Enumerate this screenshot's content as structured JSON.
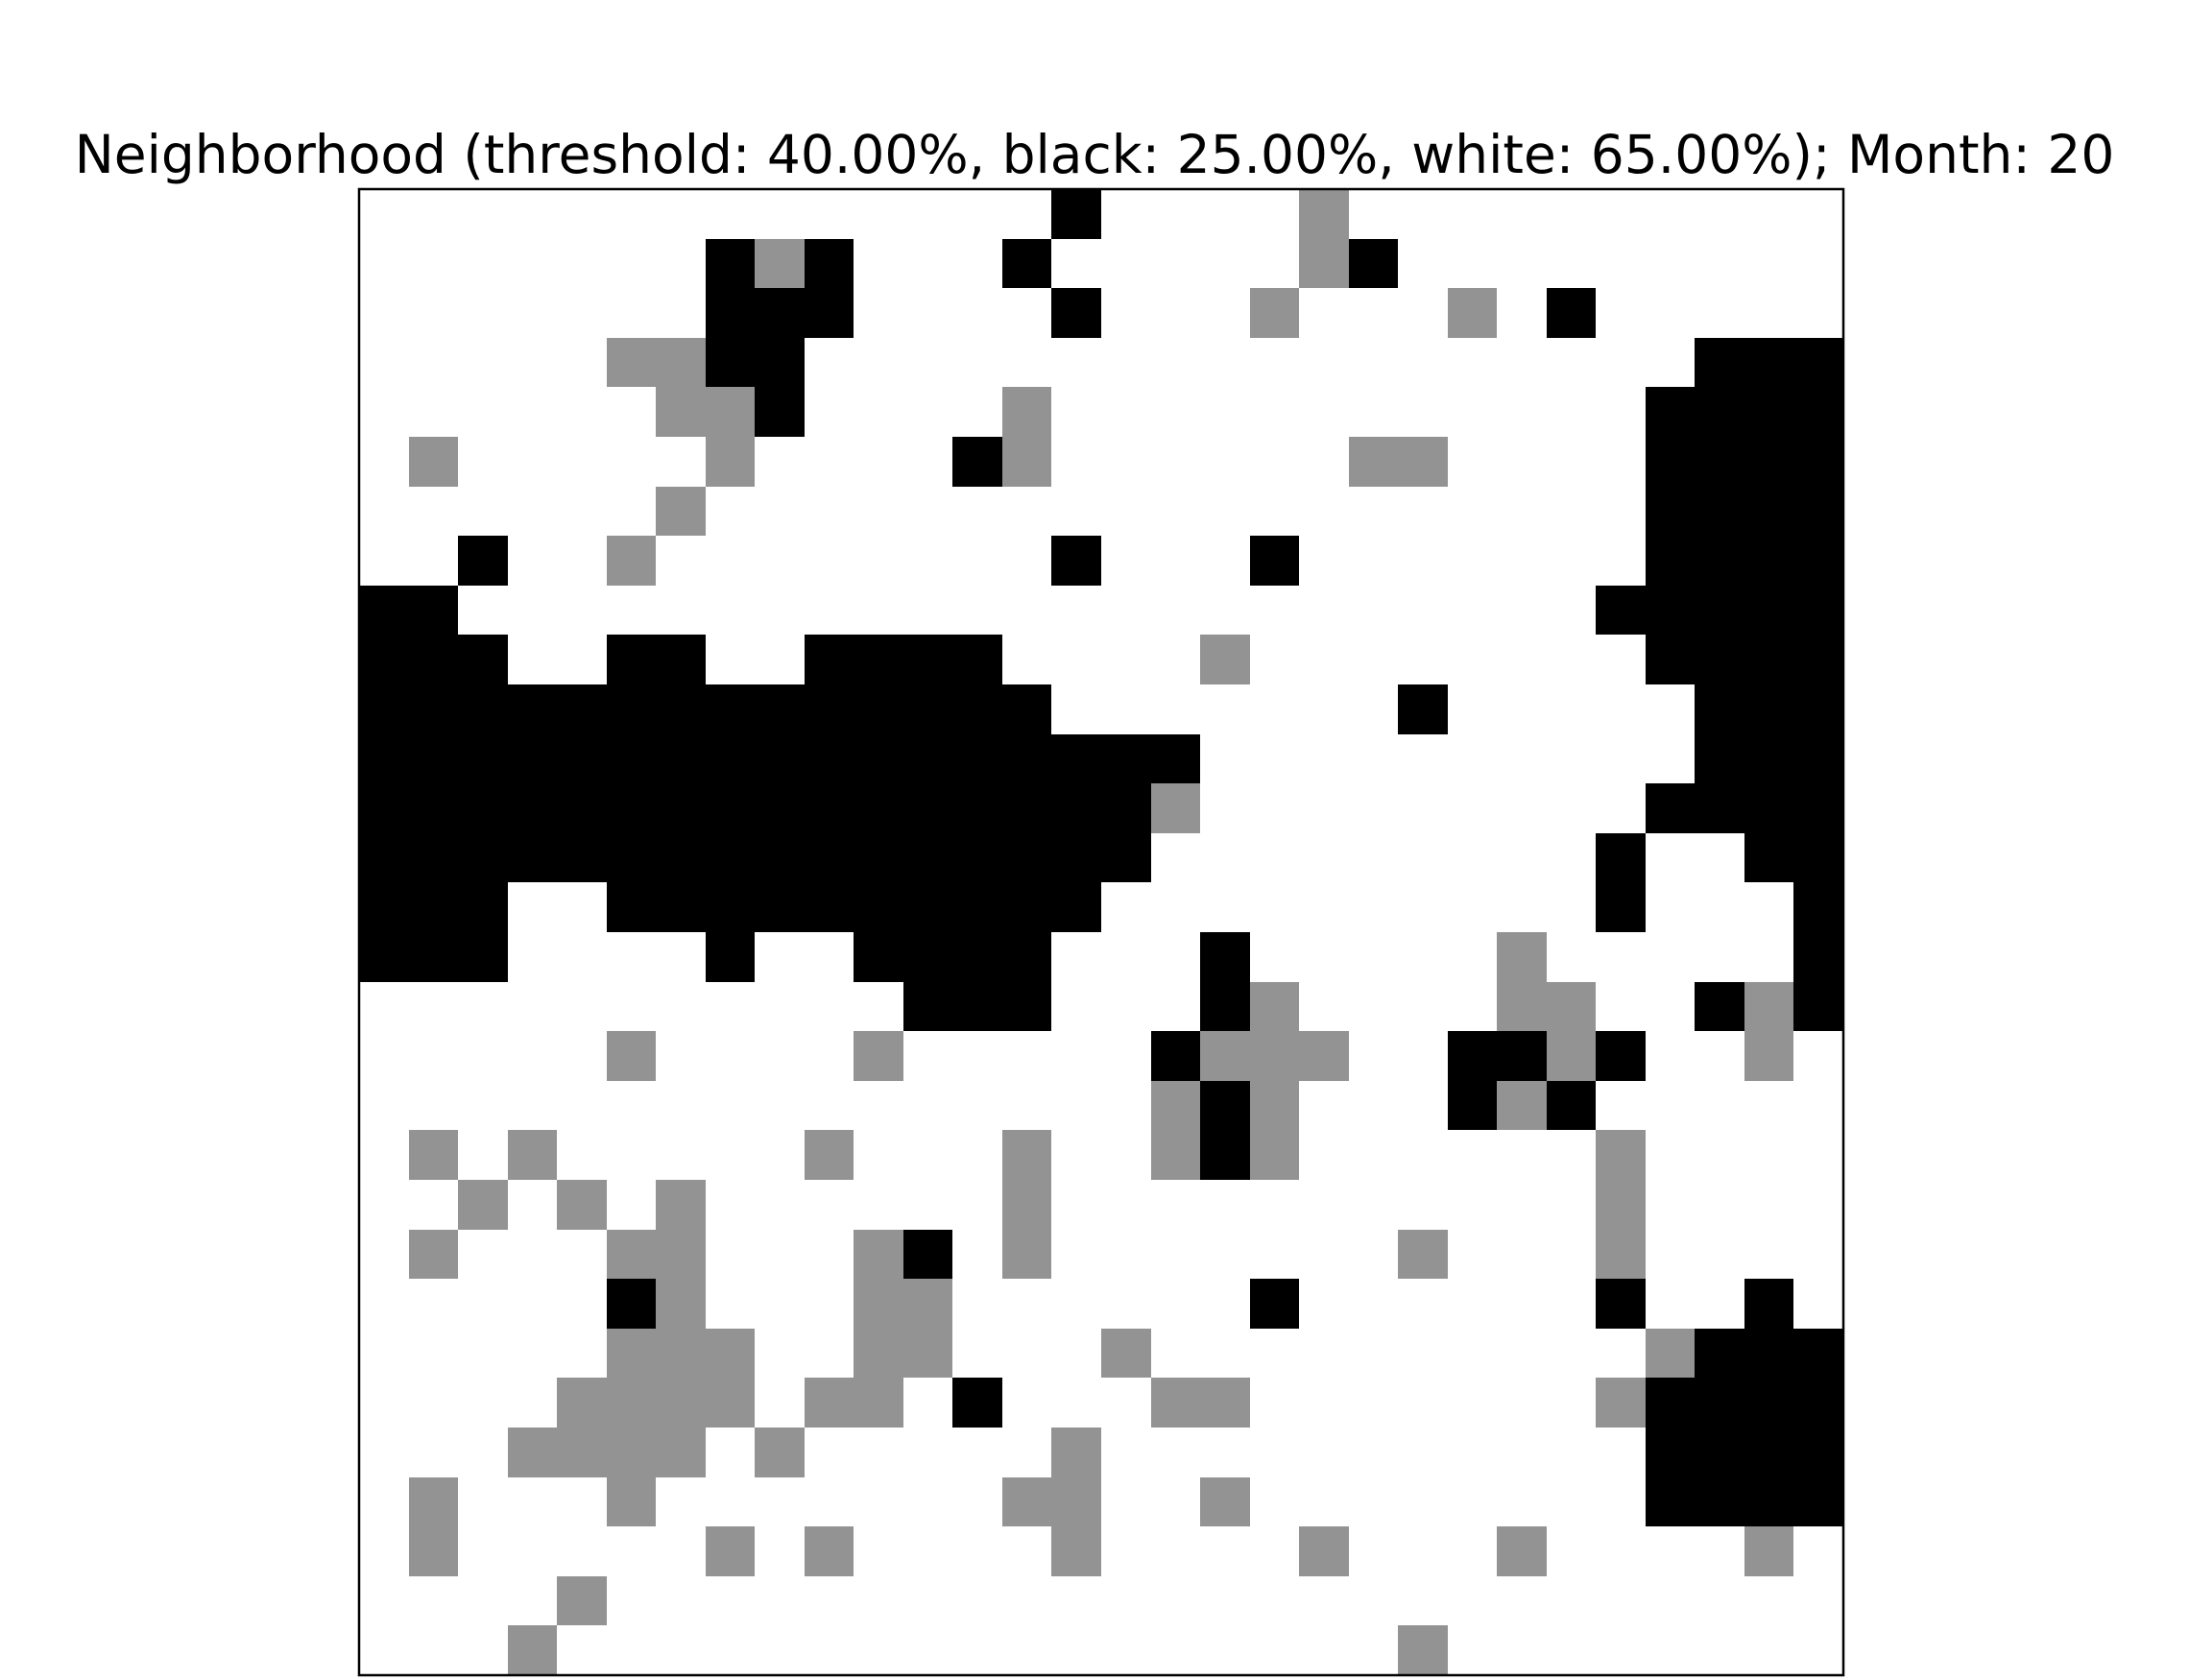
{
  "chart_data": {
    "type": "heatmap",
    "title": "Neighborhood (threshold: 40.00%, black: 25.00%, white: 65.00%); Month: 20",
    "xlabel": "",
    "ylabel": "",
    "grid": false,
    "legend": "none",
    "axes_ticks": false,
    "rows": 30,
    "cols": 30,
    "legend_map": {
      "W": "white",
      "B": "black",
      "G": "empty"
    },
    "colors": {
      "W": "#ffffff",
      "B": "#000000",
      "G": "#939393"
    },
    "cells": [
      "WWWWWWWWWWWWWWBWWWWGWWWWWWWWWW",
      "WWWWWWWBGBWWWBWWWWWGBWWWWWWWWW",
      "WWWWWWWBBBWWWWBWWWGWWWGWBWWWWW",
      "WWWWWGGBBWWWWWWWWWWWWWWWWWWBBB",
      "WWWWWWGGBWWWWGWWWWWWWWWWWWBBBB",
      "WGWWWWWGWWWWBGWWWWWWGGWWWWBBBB",
      "WWWWWWGWWWWWWWWWWWWWWWWWWWBBBB",
      "WWBWWGWWWWWWWWBWWWBWWWWWWWBBBB",
      "BBWWWWWWWWWWWWWWWWWWWWWWWBBBBB",
      "BBBWWBBWWBBBBWWWWGWWWWWWWWBBBB",
      "BBBBBBBBBBBBBBWWWWWWWBWWWWWBBB",
      "BBBBBBBBBBBBBBBBBWWWWWWWWWWBBB",
      "BBBBBBBBBBBBBBBBGWWWWWWWWWBBBB",
      "BBBBBBBBBBBBBBBBWWWWWWWWWBWWBB",
      "BBBWWBBBBBBBBBBWWWWWWWWWWBWWWB",
      "BBBWWWWBWWBBBBWWWBWWWWWGWWWWWB",
      "WWWWWWWWWWWBBBWWWBGWWWWGGWWBGB",
      "WWWWWGWWWWGWWWWWBGGGWWBBGBWWGW",
      "WWWWWWWWWWWWWWWWGBGWWWBGBWWWWW",
      "WGWGWWWWWGWWWGWWGBGWWWWWWGWWWW",
      "WWGWGWGWWWWWWGWWWWWWWWWWWGWWWW",
      "WGWWWGGWWWGBWGWWWWWWWGWWWGWWWW",
      "WWWWWBGWWWGGWWWWWWBWWWWWWBWWBW",
      "WWWWWGGGWWGGWWWGWWWWWWWWWWGBBB",
      "WWWWGGGGWGGWBWWWGGWWWWWWWGBBBB",
      "WWWGGGGWGWWWWWGWWWWWWWWWWWBBBB",
      "WGWWWGWWWWWWWGGWWGWWWWWWWWBBBB",
      "WGWWWWWGWGWWWWGWWWWGWWWGWWWWGW",
      "WWWWGWWWWWWWWWWWWWWWWWWWWWWWWW",
      "WWWGWWWWWWWWWWWWWWWWWGWWWWWWWW"
    ]
  }
}
